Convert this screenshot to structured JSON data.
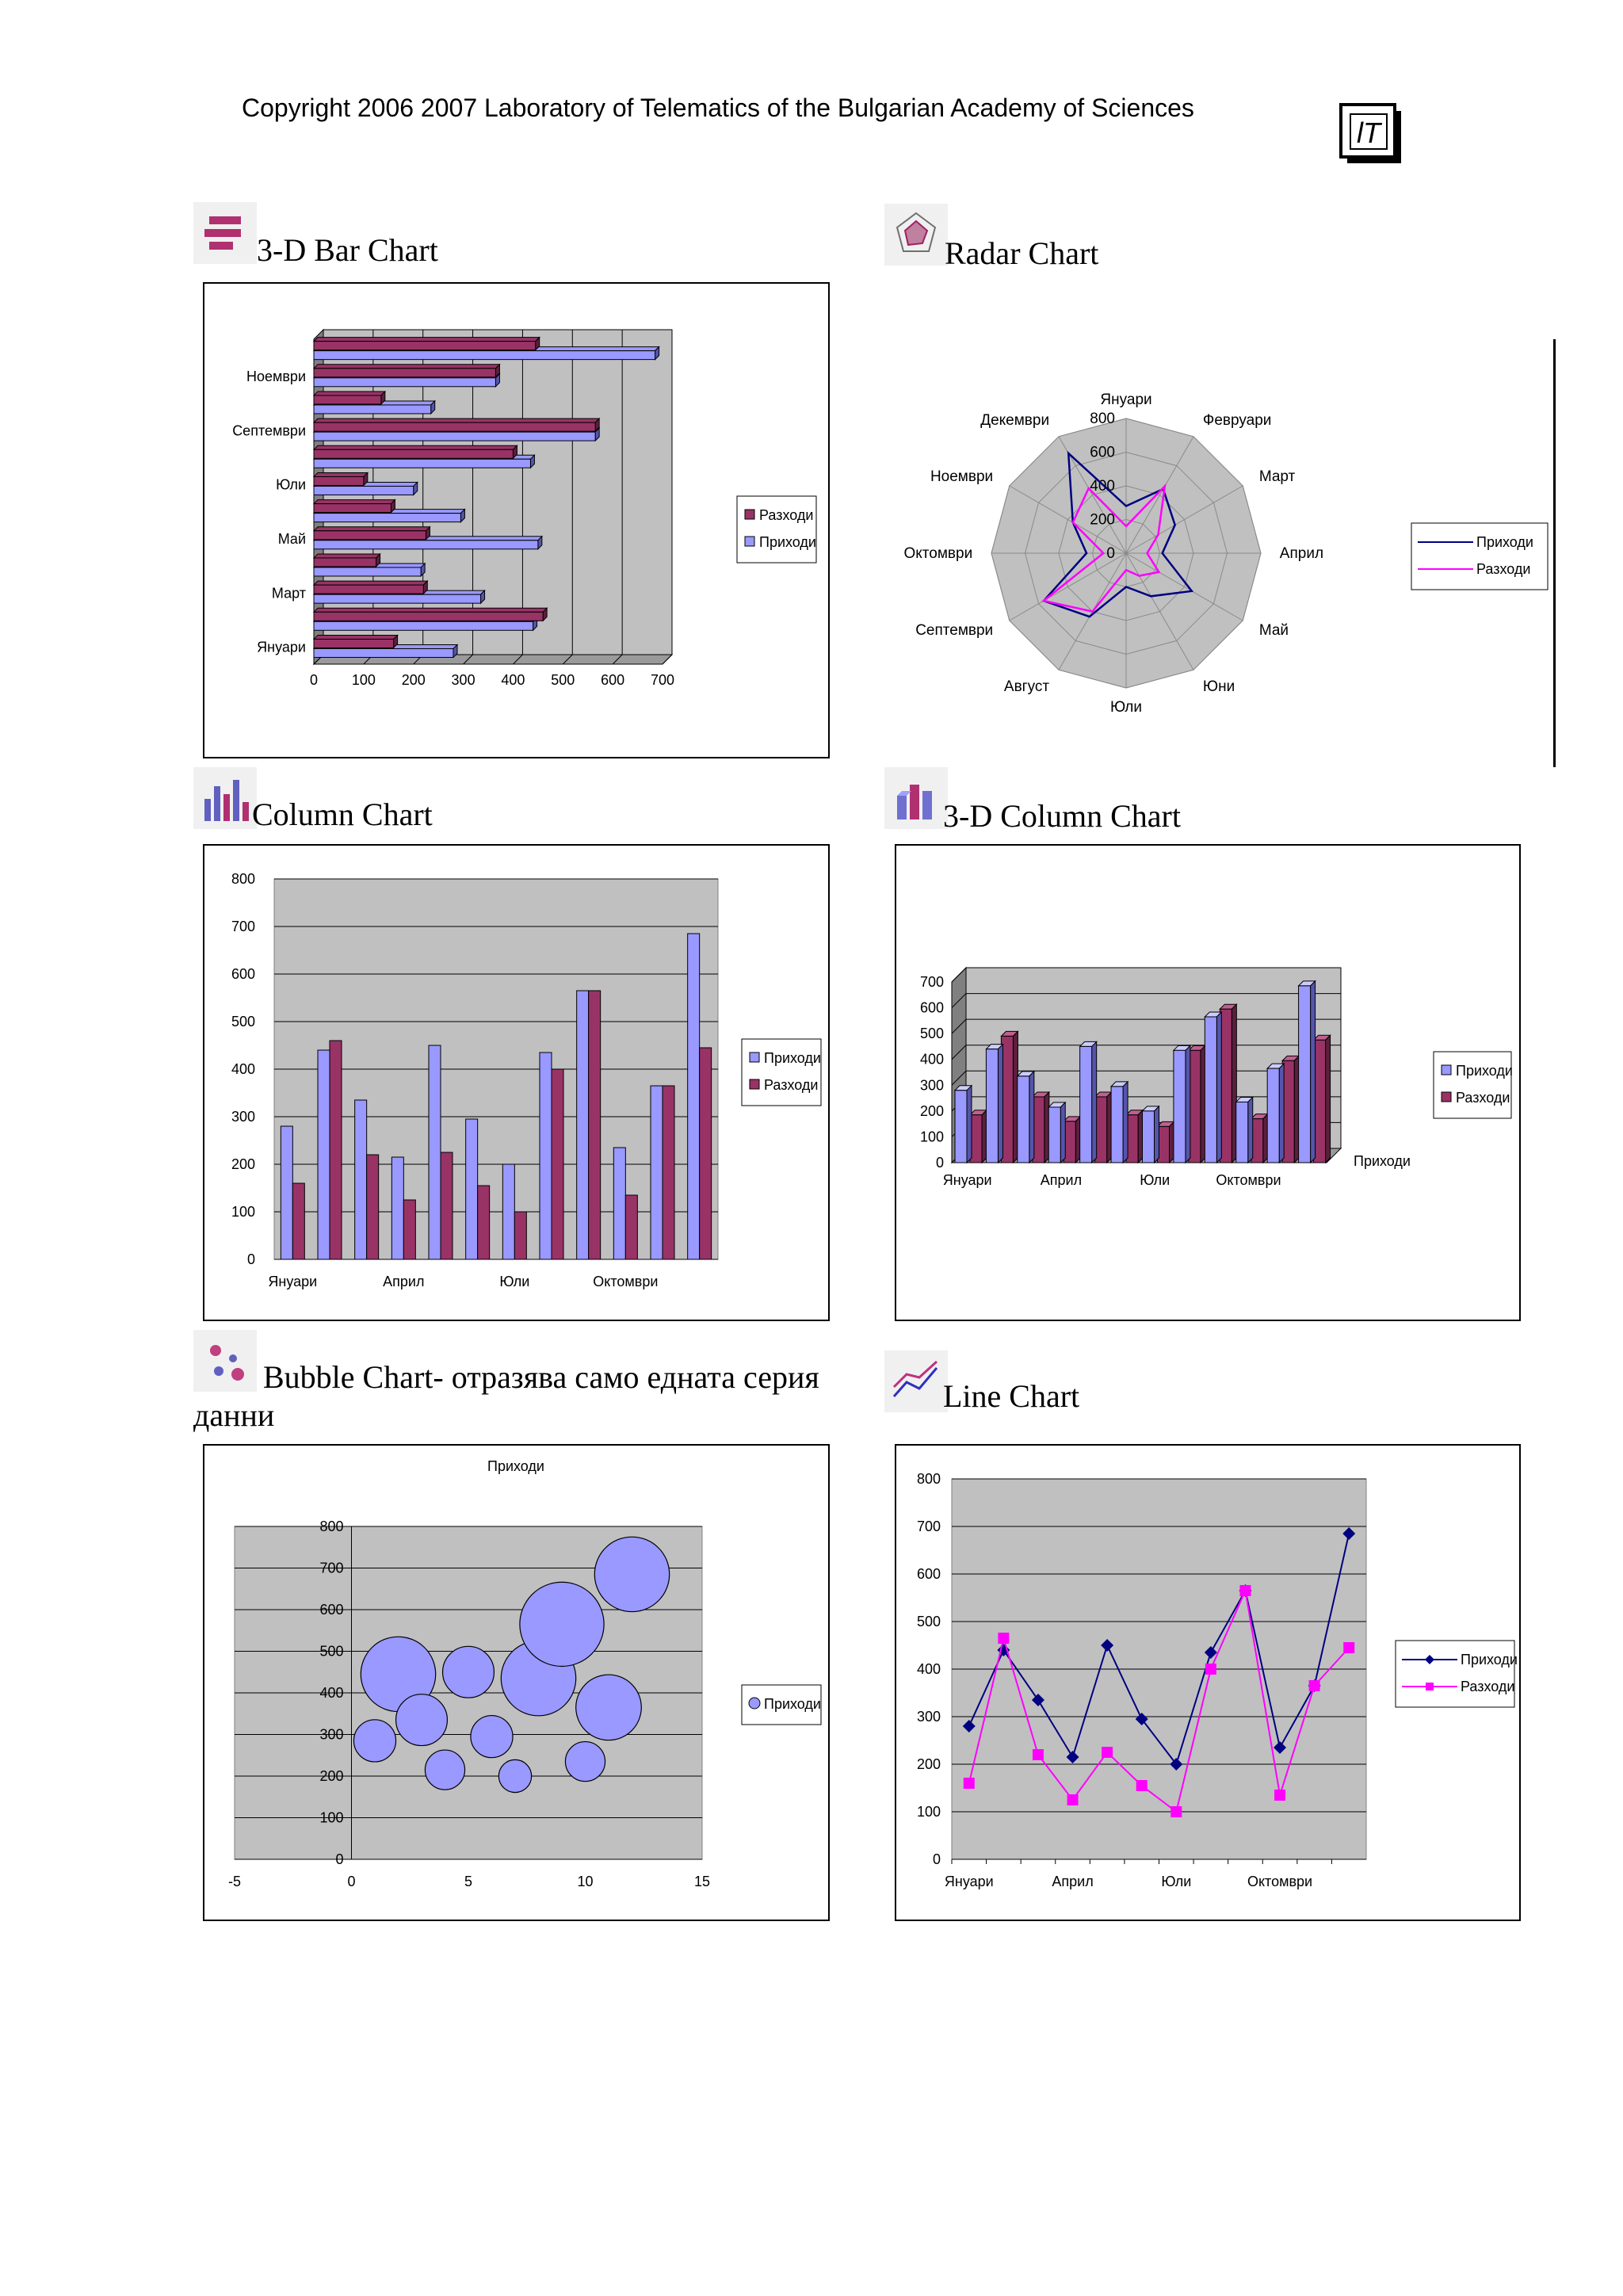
{
  "header": {
    "copyright": "Copyright 2006 2007 Laboratory of  Telematics  of  the Bulgarian Academy of Sciences"
  },
  "logo_icon": "lt-logo-icon",
  "colors": {
    "revenue": "#9999ff",
    "revenue_line": "#000080",
    "expense": "#993366",
    "expense_line": "#ff00ff",
    "plot_bg": "#c0c0c0"
  },
  "sections": {
    "bar3d": {
      "title": "3-D Bar Chart",
      "icon": "bar-chart-icon"
    },
    "radar": {
      "title": "Radar Chart",
      "icon": "radar-chart-icon"
    },
    "column": {
      "title": "Column Chart",
      "icon": "column-chart-icon"
    },
    "col3d": {
      "title": "3-D Column Chart",
      "icon": "3d-column-chart-icon"
    },
    "bubble": {
      "title_line1": "Bubble Chart- отразява само едната серия",
      "title_line2": "данни",
      "icon": "bubble-chart-icon"
    },
    "line": {
      "title": "Line Chart",
      "icon": "line-chart-icon"
    }
  },
  "chart_data": [
    {
      "id": "bar3d",
      "type": "bar",
      "orientation": "horizontal",
      "three_d": true,
      "categories": [
        "Януари",
        "Февруари",
        "Март",
        "Април",
        "Май",
        "Юни",
        "Юли",
        "Август",
        "Септември",
        "Октомври",
        "Ноември",
        "Декември"
      ],
      "category_labels_shown": [
        "Януари",
        "Март",
        "Май",
        "Юли",
        "Септември",
        "Ноември"
      ],
      "series": [
        {
          "name": "Приходи",
          "values": [
            280,
            440,
            335,
            215,
            450,
            295,
            200,
            435,
            565,
            235,
            365,
            685
          ]
        },
        {
          "name": "Разходи",
          "values": [
            160,
            460,
            220,
            125,
            225,
            155,
            100,
            400,
            565,
            135,
            365,
            445
          ]
        }
      ],
      "xlim": [
        0,
        700
      ],
      "xticks": [
        0,
        100,
        200,
        300,
        400,
        500,
        600,
        700
      ],
      "legend_order": [
        "Разходи",
        "Приходи"
      ],
      "legend": "right",
      "grid": true
    },
    {
      "id": "radar",
      "type": "radar",
      "categories": [
        "Януари",
        "Февруари",
        "Март",
        "Април",
        "Май",
        "Юни",
        "Юли",
        "Август",
        "Септември",
        "Октомври",
        "Ноември",
        "Декември"
      ],
      "series": [
        {
          "name": "Приходи",
          "values": [
            280,
            440,
            335,
            215,
            450,
            295,
            200,
            435,
            565,
            235,
            365,
            685
          ]
        },
        {
          "name": "Разходи",
          "values": [
            160,
            460,
            220,
            125,
            225,
            155,
            100,
            400,
            565,
            135,
            365,
            445
          ]
        }
      ],
      "rlim": [
        0,
        800
      ],
      "rticks": [
        0,
        200,
        400,
        600,
        800
      ],
      "legend": "right"
    },
    {
      "id": "column",
      "type": "bar",
      "categories": [
        "Януари",
        "Февруари",
        "Март",
        "Април",
        "Май",
        "Юни",
        "Юли",
        "Август",
        "Септември",
        "Октомври",
        "Ноември",
        "Декември"
      ],
      "category_labels_shown": [
        "Януари",
        "Април",
        "Юли",
        "Октомври"
      ],
      "series": [
        {
          "name": "Приходи",
          "values": [
            280,
            440,
            335,
            215,
            450,
            295,
            200,
            435,
            565,
            235,
            365,
            685
          ]
        },
        {
          "name": "Разходи",
          "values": [
            160,
            460,
            220,
            125,
            225,
            155,
            100,
            400,
            565,
            135,
            365,
            445
          ]
        }
      ],
      "ylim": [
        0,
        800
      ],
      "yticks": [
        0,
        100,
        200,
        300,
        400,
        500,
        600,
        700,
        800
      ],
      "legend": "right",
      "grid": true
    },
    {
      "id": "col3d",
      "type": "bar",
      "three_d": true,
      "categories": [
        "Януари",
        "Февруари",
        "Март",
        "Април",
        "Май",
        "Юни",
        "Юли",
        "Август",
        "Септември",
        "Октомври",
        "Ноември",
        "Декември"
      ],
      "category_labels_shown": [
        "Януари",
        "Април",
        "Юли",
        "Октомври"
      ],
      "depth_label": "Приходи",
      "series": [
        {
          "name": "Приходи",
          "values": [
            280,
            440,
            335,
            215,
            450,
            295,
            200,
            435,
            565,
            235,
            365,
            685
          ]
        },
        {
          "name": "Разходи",
          "values": [
            185,
            490,
            255,
            160,
            255,
            185,
            140,
            435,
            595,
            170,
            395,
            475
          ]
        }
      ],
      "ylim": [
        0,
        700
      ],
      "yticks": [
        0,
        100,
        200,
        300,
        400,
        500,
        600,
        700
      ],
      "legend": "right",
      "grid": true
    },
    {
      "id": "bubble",
      "type": "scatter",
      "bubble": true,
      "title": "Приходи",
      "points": [
        {
          "x": 1,
          "y": 285,
          "r": 0.9
        },
        {
          "x": 2,
          "y": 445,
          "r": 1.6
        },
        {
          "x": 3,
          "y": 335,
          "r": 1.1
        },
        {
          "x": 4,
          "y": 215,
          "r": 0.85
        },
        {
          "x": 5,
          "y": 450,
          "r": 1.1
        },
        {
          "x": 6,
          "y": 295,
          "r": 0.9
        },
        {
          "x": 7,
          "y": 200,
          "r": 0.7
        },
        {
          "x": 8,
          "y": 435,
          "r": 1.6
        },
        {
          "x": 9,
          "y": 565,
          "r": 1.8
        },
        {
          "x": 10,
          "y": 235,
          "r": 0.85
        },
        {
          "x": 11,
          "y": 365,
          "r": 1.4
        },
        {
          "x": 12,
          "y": 685,
          "r": 1.6
        }
      ],
      "series_name": "Приходи",
      "xlim": [
        -5,
        15
      ],
      "xticks": [
        -5,
        0,
        5,
        10,
        15
      ],
      "ylim": [
        0,
        800
      ],
      "yticks": [
        0,
        100,
        200,
        300,
        400,
        500,
        600,
        700,
        800
      ],
      "legend": "right",
      "grid": true
    },
    {
      "id": "line",
      "type": "line",
      "categories": [
        "Януари",
        "Февруари",
        "Март",
        "Април",
        "Май",
        "Юни",
        "Юли",
        "Август",
        "Септември",
        "Октомври",
        "Ноември",
        "Декември"
      ],
      "category_labels_shown": [
        "Януари",
        "Април",
        "Юли",
        "Октомври"
      ],
      "series": [
        {
          "name": "Приходи",
          "values": [
            280,
            440,
            335,
            215,
            450,
            295,
            200,
            435,
            565,
            235,
            365,
            685
          ]
        },
        {
          "name": "Разходи",
          "values": [
            160,
            465,
            220,
            125,
            225,
            155,
            100,
            400,
            565,
            135,
            365,
            445
          ]
        }
      ],
      "ylim": [
        0,
        800
      ],
      "yticks": [
        0,
        100,
        200,
        300,
        400,
        500,
        600,
        700,
        800
      ],
      "legend": "right",
      "grid": true
    }
  ]
}
